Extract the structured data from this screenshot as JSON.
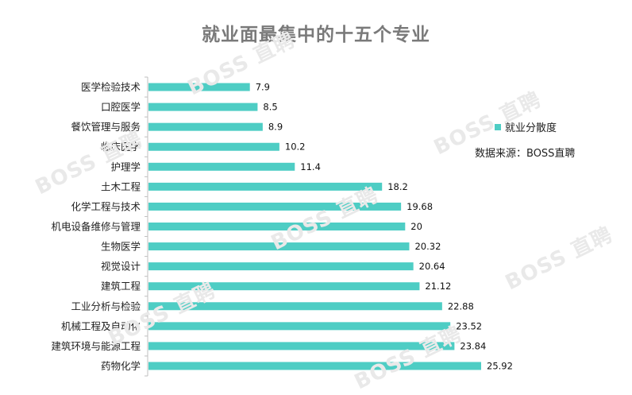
{
  "chart_data": {
    "type": "bar",
    "orientation": "horizontal",
    "title": "就业面最集中的十五个专业",
    "categories": [
      "医学检验技术",
      "口腔医学",
      "餐饮管理与服务",
      "临床医学",
      "护理学",
      "土木工程",
      "化学工程与技术",
      "机电设备维修与管理",
      "生物医学",
      "视觉设计",
      "建筑工程",
      "工业分析与检验",
      "机械工程及自动化",
      "建筑环境与能源工程",
      "药物化学"
    ],
    "series": [
      {
        "name": "就业分散度",
        "values": [
          7.9,
          8.5,
          8.9,
          10.2,
          11.4,
          18.2,
          19.68,
          20,
          20.32,
          20.64,
          21.12,
          22.88,
          23.52,
          23.84,
          25.92
        ]
      }
    ],
    "value_labels": [
      "7.9",
      "8.5",
      "8.9",
      "10.2",
      "11.4",
      "18.2",
      "19.68",
      "20",
      "20.32",
      "20.64",
      "21.12",
      "22.88",
      "23.52",
      "23.84",
      "25.92"
    ],
    "xlim": [
      0,
      27
    ],
    "grid": false,
    "legend_position": "right",
    "bar_color": "#4ecdc4"
  },
  "source_text": "数据来源：BOSS直聘",
  "watermark_text": "BOSS 直聘"
}
